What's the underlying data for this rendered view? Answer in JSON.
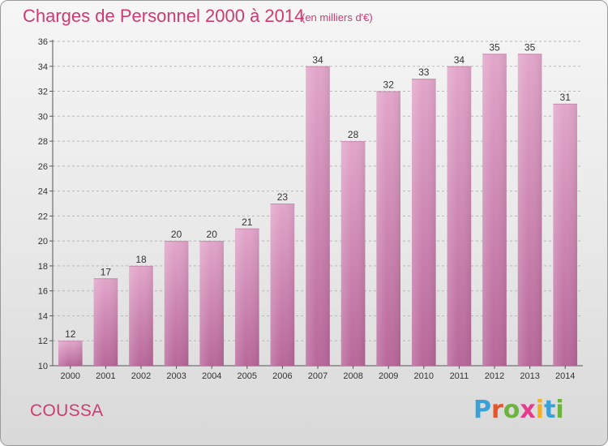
{
  "header": {
    "title": "Charges de Personnel 2000 à 2014",
    "unit": "(en milliers d'€)"
  },
  "footer": {
    "commune": "COUSSA",
    "logo_letters": [
      "P",
      "r",
      "o",
      "x",
      "i",
      "t",
      "i"
    ],
    "logo_colors": [
      "#3aa0d8",
      "#e8542a",
      "#6cb33f",
      "#e83a8c",
      "#f2b01e",
      "#3aa0d8",
      "#6cb33f"
    ]
  },
  "chart_data": {
    "type": "bar",
    "categories": [
      "2000",
      "2001",
      "2002",
      "2003",
      "2004",
      "2005",
      "2006",
      "2007",
      "2008",
      "2009",
      "2010",
      "2011",
      "2012",
      "2013",
      "2014"
    ],
    "values": [
      12,
      17,
      18,
      20,
      20,
      21,
      23,
      34,
      28,
      32,
      33,
      34,
      35,
      35,
      31
    ],
    "ylim": [
      10,
      36
    ],
    "yticks": [
      10,
      12,
      14,
      16,
      18,
      20,
      22,
      24,
      26,
      28,
      30,
      32,
      34,
      36
    ],
    "grid": true,
    "bar_color_top": "#e2a6ca",
    "bar_color_bottom": "#b8679a"
  }
}
